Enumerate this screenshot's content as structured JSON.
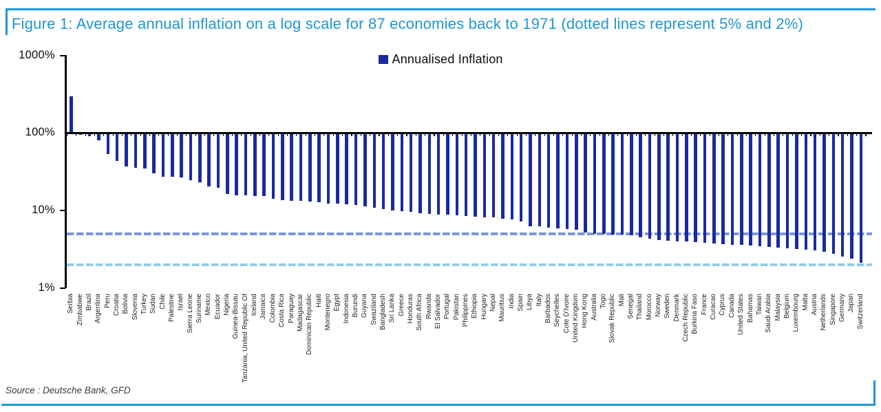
{
  "figure": {
    "title": "Figure 1: Average annual inflation on a log scale for 87 economies back to 1971 (dotted lines represent 5% and 2%)",
    "source": "Source : Deutsche Bank, GFD",
    "accent_blue": "#2196d3",
    "bar_color": "#1b2a9e",
    "dash_5pct_color": "#7d93dd",
    "dash_2pct_color": "#93ccee"
  },
  "legend": {
    "label": "Annualised Inflation"
  },
  "y_axis": {
    "ticks": [
      "1000%",
      "100%",
      "10%",
      "1%"
    ]
  },
  "chart_data": {
    "type": "bar",
    "scale": "log",
    "title": "Annualised Inflation",
    "ylabel": "",
    "xlabel": "",
    "ylim": [
      1,
      1000
    ],
    "baseline_pct": 100,
    "reference_lines_pct": [
      5,
      2
    ],
    "legend_position": "top-center",
    "grid": false,
    "categories": [
      "Serbia",
      "Zimbabwe",
      "Brazil",
      "Argentina",
      "Peru",
      "Croatia",
      "Bolivia",
      "Slovenia",
      "Turkey",
      "Sudan",
      "Chile",
      "Palestine",
      "Israel",
      "Sierra Leone",
      "Suriname",
      "Mexico",
      "Ecuador",
      "Nigeria",
      "Guinea-Bissau",
      "Tanzania, United Republic Of",
      "Iceland",
      "Jamaica",
      "Colombia",
      "Costa Rica",
      "Paraguay",
      "Madagascar",
      "Dominican Republic",
      "Haiti",
      "Montenegro",
      "Egypt",
      "Indonesia",
      "Burundi",
      "Guyana",
      "Swaziland",
      "Bangladesh",
      "Sri Lanka",
      "Greece",
      "Honduras",
      "South Africa",
      "Rwanda",
      "El Salvador",
      "Portugal",
      "Pakistan",
      "Philippines",
      "Ethiopia",
      "Hungary",
      "Nepal",
      "Mauritius",
      "India",
      "Spain",
      "Libya",
      "Italy",
      "Barbados",
      "Seychelles",
      "Cote D'Ivoire",
      "United Kingdom",
      "Hong Kong",
      "Australia",
      "Togo",
      "Slovak Republic",
      "Mali",
      "Senegal",
      "Thailand",
      "Morocco",
      "Norway",
      "Sweden",
      "Denmark",
      "Czech Republic",
      "Burkina Faso",
      "France",
      "Curacao",
      "Cyprus",
      "Canada",
      "United States",
      "Bahamas",
      "Taiwan",
      "Saudi Arabia",
      "Malaysia",
      "Belgium",
      "Luxembourg",
      "Malta",
      "Austria",
      "Netherlands",
      "Singapore",
      "Germany",
      "Japan",
      "Switzerland"
    ],
    "values": [
      296,
      94,
      91,
      81,
      54,
      44,
      37,
      35.5,
      34.5,
      30,
      27.5,
      27,
      26.5,
      24.5,
      23,
      20.5,
      19.5,
      16.3,
      15.8,
      15.7,
      15.5,
      15.3,
      14.2,
      13.7,
      13.4,
      13.2,
      13.0,
      12.7,
      12.4,
      12.2,
      12.0,
      11.7,
      11.3,
      10.9,
      10.5,
      10.1,
      9.9,
      9.6,
      9.3,
      9.1,
      8.9,
      8.8,
      8.7,
      8.5,
      8.3,
      8.2,
      8.1,
      7.9,
      7.7,
      7.2,
      6.3,
      6.2,
      6.0,
      5.9,
      5.8,
      5.6,
      5.2,
      5.0,
      4.95,
      4.9,
      4.85,
      4.8,
      4.5,
      4.3,
      4.15,
      4.1,
      4.0,
      3.95,
      3.9,
      3.83,
      3.75,
      3.7,
      3.62,
      3.57,
      3.5,
      3.43,
      3.38,
      3.32,
      3.27,
      3.2,
      3.12,
      3.05,
      2.95,
      2.74,
      2.52,
      2.38,
      2.1
    ]
  }
}
